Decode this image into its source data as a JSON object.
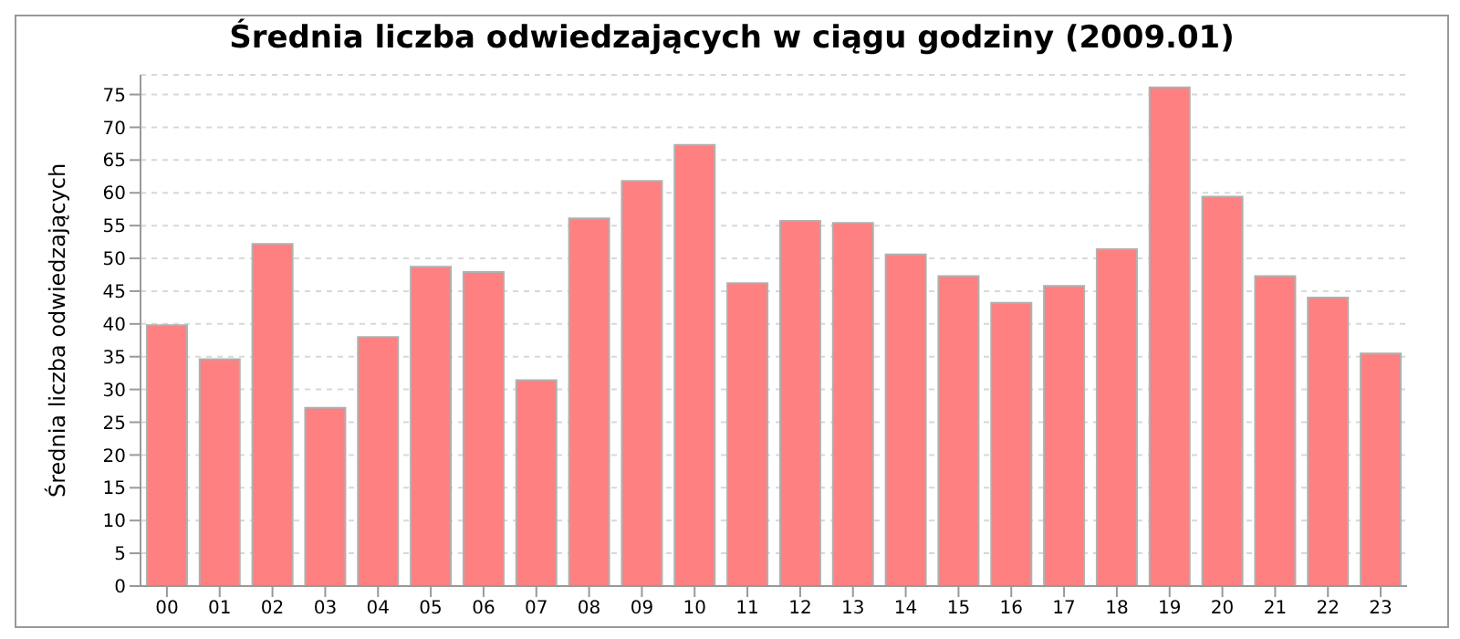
{
  "chart_data": {
    "type": "bar",
    "title": "Średnia liczba odwiedzających w ciągu godziny (2009.01)",
    "ylabel": "Średnia liczba odwiedzających",
    "categories": [
      "00",
      "01",
      "02",
      "03",
      "04",
      "05",
      "06",
      "07",
      "08",
      "09",
      "10",
      "11",
      "12",
      "13",
      "14",
      "15",
      "16",
      "17",
      "18",
      "19",
      "20",
      "21",
      "22",
      "23"
    ],
    "values": [
      39.8,
      34.6,
      52.2,
      27.2,
      38,
      48.7,
      47.9,
      31.4,
      56.1,
      61.8,
      67.3,
      46.2,
      55.7,
      55.4,
      50.6,
      47.3,
      43.2,
      45.8,
      51.4,
      76.1,
      59.4,
      47.3,
      44,
      35.5
    ],
    "color": "#ff8080",
    "ylim": [
      0,
      78
    ],
    "yticks": [
      0,
      5,
      10,
      15,
      20,
      25,
      30,
      35,
      40,
      45,
      50,
      55,
      60,
      65,
      70,
      75
    ],
    "grid": "y",
    "legend": false
  }
}
